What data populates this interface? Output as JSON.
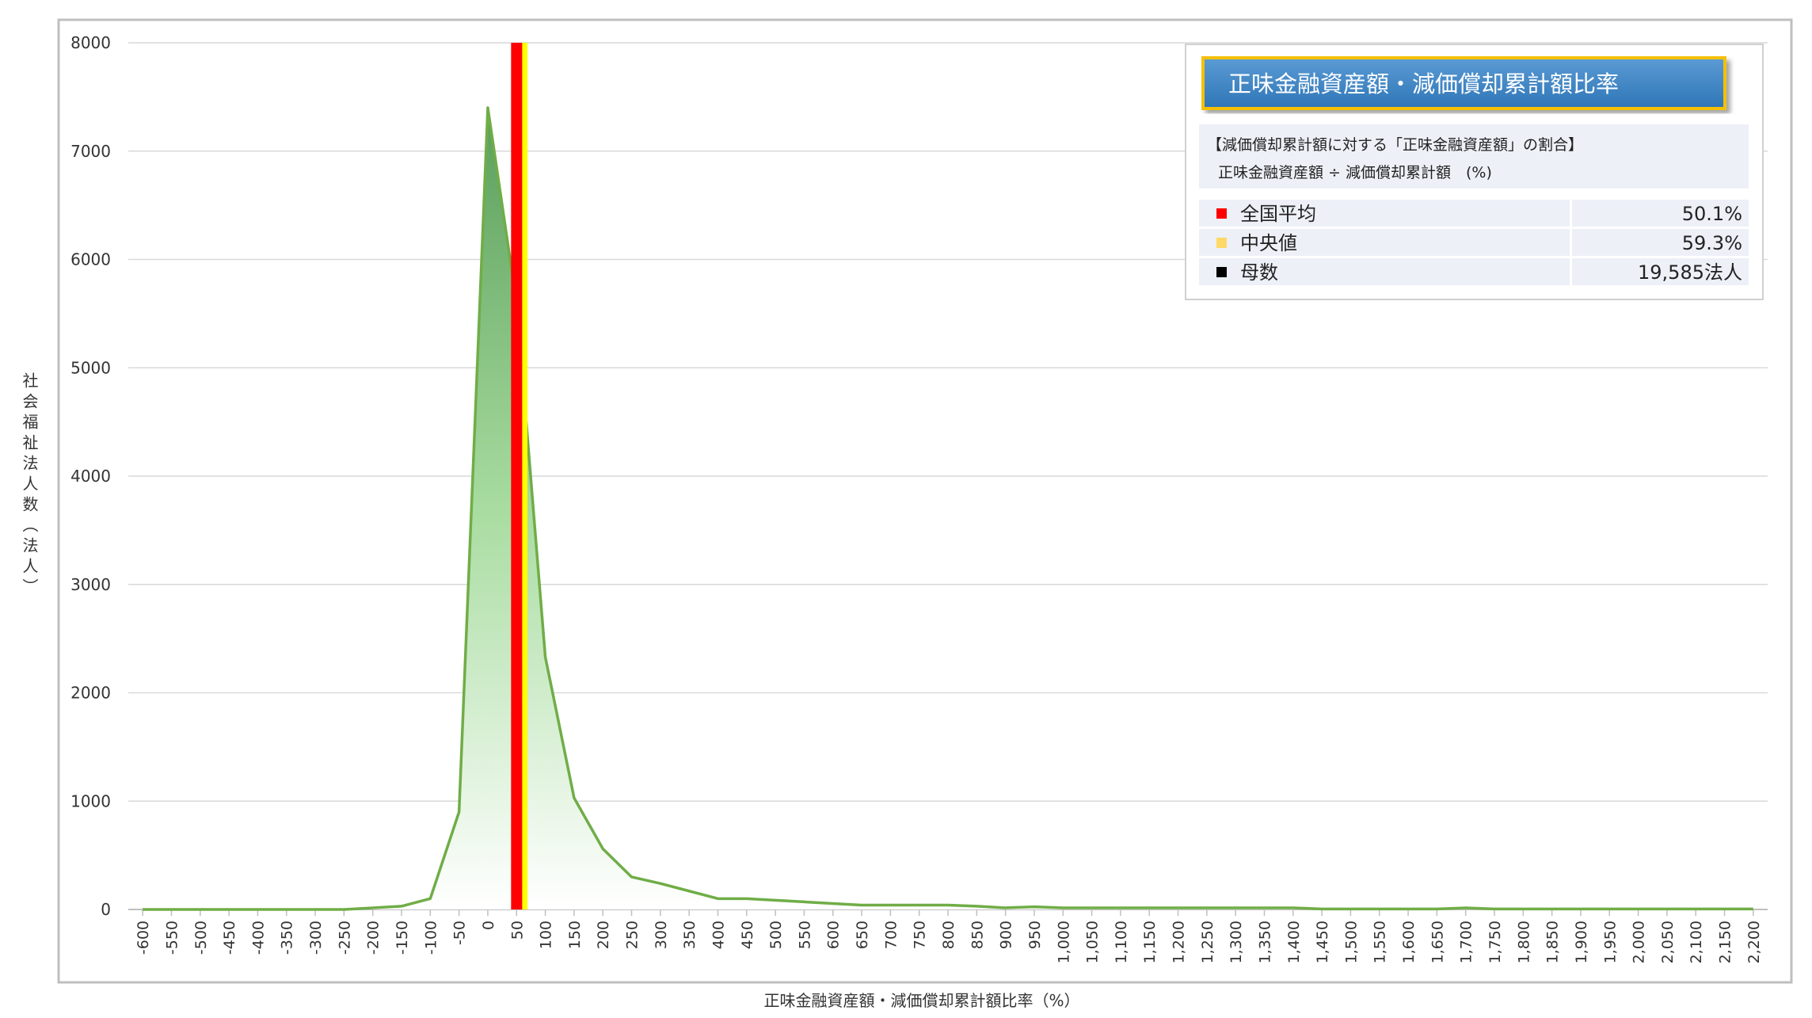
{
  "chart_data": {
    "type": "area",
    "x_label": "正味金融資産額・減価償却累計額比率（%）",
    "y_label": "社会福祉法人数（法人）",
    "x": [
      -600,
      -550,
      -500,
      -450,
      -400,
      -350,
      -300,
      -250,
      -200,
      -150,
      -100,
      -50,
      0,
      50,
      100,
      150,
      200,
      250,
      300,
      350,
      400,
      450,
      500,
      550,
      600,
      650,
      700,
      750,
      800,
      850,
      900,
      950,
      1000,
      1050,
      1100,
      1150,
      1200,
      1250,
      1300,
      1350,
      1400,
      1450,
      1500,
      1550,
      1600,
      1650,
      1700,
      1750,
      1800,
      1850,
      1900,
      1950,
      2000,
      2050,
      2100,
      2150,
      2200
    ],
    "series": [
      {
        "name": "社会福祉法人数",
        "color": "#70ad47",
        "values": [
          0,
          0,
          0,
          0,
          0,
          0,
          0,
          0,
          15,
          30,
          100,
          900,
          7400,
          5600,
          2330,
          1030,
          560,
          300,
          240,
          170,
          100,
          100,
          85,
          70,
          55,
          40,
          40,
          40,
          40,
          30,
          15,
          25,
          15,
          15,
          15,
          15,
          15,
          15,
          15,
          15,
          15,
          5,
          5,
          5,
          5,
          5,
          15,
          5,
          5,
          5,
          5,
          5,
          5,
          5,
          5,
          5,
          5
        ]
      }
    ],
    "xlim": [
      -625,
      2225
    ],
    "xticks": [
      -600,
      -550,
      -500,
      -450,
      -400,
      -350,
      -300,
      -250,
      -200,
      -150,
      -100,
      -50,
      0,
      50,
      100,
      150,
      200,
      250,
      300,
      350,
      400,
      450,
      500,
      550,
      600,
      650,
      700,
      750,
      800,
      850,
      900,
      950,
      {
        "value": 1000,
        "label": "1,000"
      },
      {
        "value": 1050,
        "label": "1,050"
      },
      {
        "value": 1100,
        "label": "1,100"
      },
      {
        "value": 1150,
        "label": "1,150"
      },
      {
        "value": 1200,
        "label": "1,200"
      },
      {
        "value": 1250,
        "label": "1,250"
      },
      {
        "value": 1300,
        "label": "1,300"
      },
      {
        "value": 1350,
        "label": "1,350"
      },
      {
        "value": 1400,
        "label": "1,400"
      },
      {
        "value": 1450,
        "label": "1,450"
      },
      {
        "value": 1500,
        "label": "1,500"
      },
      {
        "value": 1550,
        "label": "1,550"
      },
      {
        "value": 1600,
        "label": "1,600"
      },
      {
        "value": 1650,
        "label": "1,650"
      },
      {
        "value": 1700,
        "label": "1,700"
      },
      {
        "value": 1750,
        "label": "1,750"
      },
      {
        "value": 1800,
        "label": "1,800"
      },
      {
        "value": 1850,
        "label": "1,850"
      },
      {
        "value": 1900,
        "label": "1,900"
      },
      {
        "value": 1950,
        "label": "1,950"
      },
      {
        "value": 2000,
        "label": "2,000"
      },
      {
        "value": 2050,
        "label": "2,050"
      },
      {
        "value": 2100,
        "label": "2,100"
      },
      {
        "value": 2150,
        "label": "2,150"
      },
      {
        "value": 2200,
        "label": "2,200"
      }
    ],
    "ylim": [
      0,
      8000
    ],
    "yticks": [
      0,
      1000,
      2000,
      3000,
      4000,
      5000,
      6000,
      7000,
      8000
    ],
    "grid": true,
    "reference_lines": [
      {
        "name": "全国平均",
        "value": 50.1,
        "value_label": "50.1%",
        "color": "#ff0000"
      },
      {
        "name": "中央値",
        "value": 59.3,
        "value_label": "59.3%",
        "color": "#ffff00"
      }
    ],
    "count": {
      "name": "母数",
      "value": 19585,
      "value_label": "19,585法人",
      "color": "#000000"
    },
    "info_title": "正味金融資産額・減価償却累計額比率",
    "description": [
      "【減価償却累計額に対する「正味金融資産額」の割合】",
      "正味金融資産額 ÷ 減価償却累計額　(%)"
    ]
  }
}
